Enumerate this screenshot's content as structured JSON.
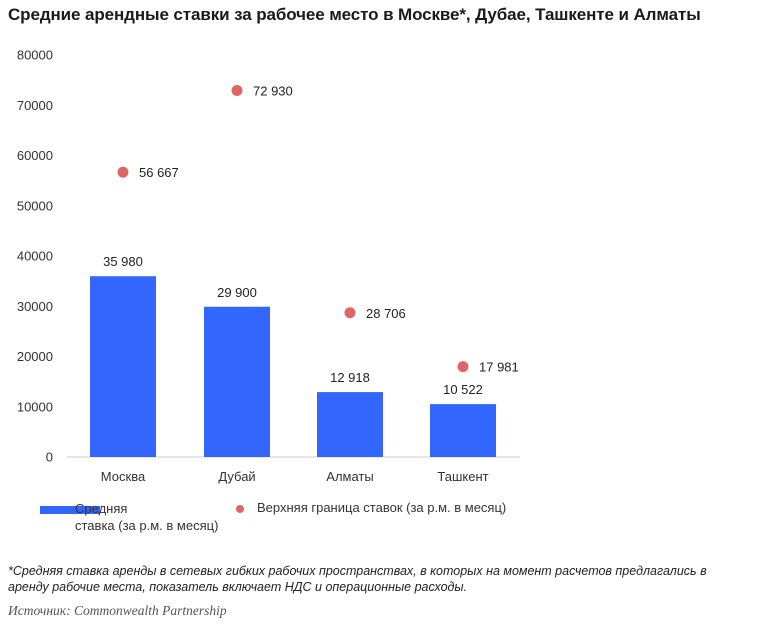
{
  "title": "Средние арендные ставки за рабочее место в Москве*, Дубае, Ташкенте и Алматы",
  "chart_data": {
    "type": "bar",
    "categories": [
      "Москва",
      "Дубай",
      "Алматы",
      "Ташкент"
    ],
    "series": [
      {
        "name": "Средняя ставка (за р.м. в месяц)",
        "type": "bar",
        "values": [
          35980,
          29900,
          12918,
          10522
        ],
        "labels": [
          "35 980",
          "29 900",
          "12 918",
          "10 522"
        ],
        "color": "#3366ff"
      },
      {
        "name": "Верхняя граница ставок (за р.м. в месяц)",
        "type": "scatter",
        "values": [
          56667,
          72930,
          28706,
          17981
        ],
        "labels": [
          "56 667",
          "72 930",
          "28 706",
          "17 981"
        ],
        "color": "#e06666"
      }
    ],
    "ylim": [
      0,
      80000
    ],
    "yticks": [
      "0",
      "10000",
      "20000",
      "30000",
      "40000",
      "50000",
      "60000",
      "70000",
      "80000"
    ],
    "grid": false,
    "legend": "bottom"
  },
  "legend": {
    "bar_line1": "Средняя",
    "bar_line2": "ставка (за р.м. в месяц)",
    "dot": "Верхняя граница ставок (за р.м. в месяц)"
  },
  "footnote": "*Средняя ставка аренды в сетевых гибких рабочих пространствах, в которых на момент расчетов предлагались в аренду рабочие места, показатель включает НДС и операционные расходы.",
  "source": "Источник: Commonwealth Partnership"
}
